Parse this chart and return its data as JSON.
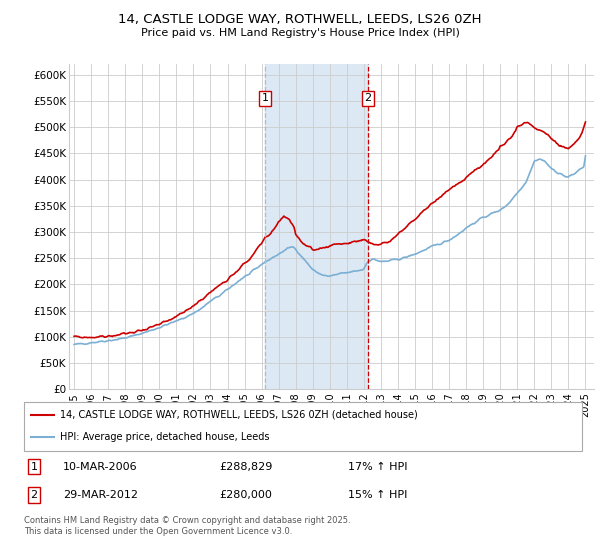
{
  "title1": "14, CASTLE LODGE WAY, ROTHWELL, LEEDS, LS26 0ZH",
  "title2": "Price paid vs. HM Land Registry's House Price Index (HPI)",
  "ylabel_ticks": [
    "£0",
    "£50K",
    "£100K",
    "£150K",
    "£200K",
    "£250K",
    "£300K",
    "£350K",
    "£400K",
    "£450K",
    "£500K",
    "£550K",
    "£600K"
  ],
  "ytick_values": [
    0,
    50000,
    100000,
    150000,
    200000,
    250000,
    300000,
    350000,
    400000,
    450000,
    500000,
    550000,
    600000
  ],
  "legend_label1": "14, CASTLE LODGE WAY, ROTHWELL, LEEDS, LS26 0ZH (detached house)",
  "legend_label2": "HPI: Average price, detached house, Leeds",
  "transaction1": {
    "num": "1",
    "date": "10-MAR-2006",
    "price": 288829,
    "hpi_change": "17% ↑ HPI"
  },
  "transaction2": {
    "num": "2",
    "date": "29-MAR-2012",
    "price": 280000,
    "hpi_change": "15% ↑ HPI"
  },
  "footnote": "Contains HM Land Registry data © Crown copyright and database right 2025.\nThis data is licensed under the Open Government Licence v3.0.",
  "color_red": "#CC0000",
  "color_blue": "#7BAFD4",
  "color_shading": "#DCE9F5",
  "bg_color": "#FFFFFF",
  "grid_color": "#CCCCCC",
  "transaction1_x": 2006.19,
  "transaction2_x": 2012.24,
  "xlim_left": 1994.7,
  "xlim_right": 2025.5,
  "ylim_top": 620000,
  "xtick_years": [
    1995,
    1996,
    1997,
    1998,
    1999,
    2000,
    2001,
    2002,
    2003,
    2004,
    2005,
    2006,
    2007,
    2008,
    2009,
    2010,
    2011,
    2012,
    2013,
    2014,
    2015,
    2016,
    2017,
    2018,
    2019,
    2020,
    2021,
    2022,
    2023,
    2024,
    2025
  ]
}
